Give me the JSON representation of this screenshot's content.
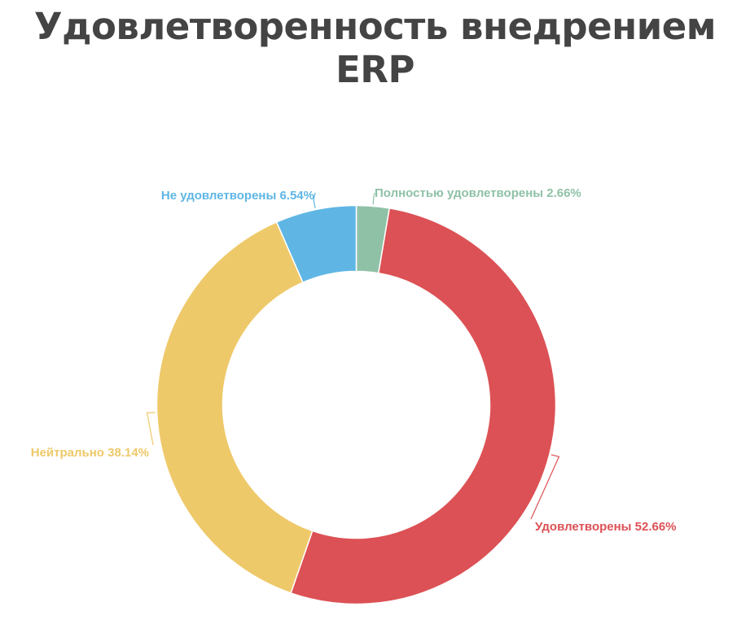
{
  "chart_data": {
    "type": "pie",
    "title": "Удовлетворенность внедрением ERP",
    "donut": true,
    "slices": [
      {
        "label": "Полностью удовлетворены 2.66%",
        "value": 2.66,
        "color": "#8fc1a6",
        "label_anchor": "start"
      },
      {
        "label": "Удовлетворены 52.66%",
        "value": 52.66,
        "color": "#dc5155",
        "label_anchor": "start"
      },
      {
        "label": "Нейтрально 38.14%",
        "value": 38.14,
        "color": "#eec96a",
        "label_anchor": "end"
      },
      {
        "label": "Не удовлетворены 6.54%",
        "value": 6.54,
        "color": "#5fb6e4",
        "label_anchor": "end"
      }
    ]
  }
}
